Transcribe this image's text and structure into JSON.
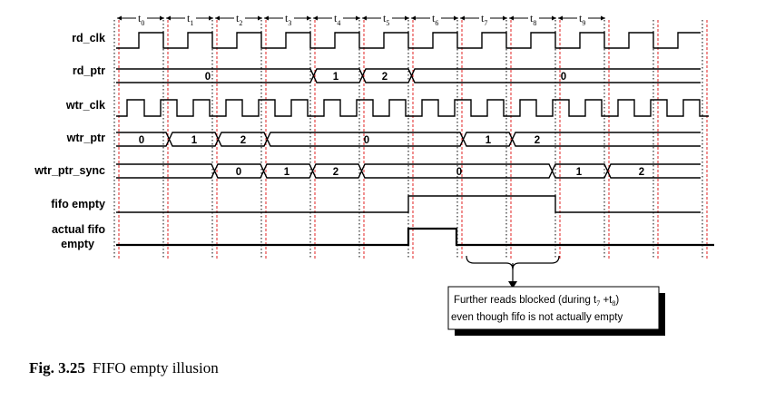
{
  "signals": {
    "rd_clk": "rd_clk",
    "rd_ptr": "rd_ptr",
    "wtr_clk": "wtr_clk",
    "wtr_ptr": "wtr_ptr",
    "wtr_ptr_sync": "wtr_ptr_sync",
    "fifo_empty": "fifo empty",
    "actual_fifo_empty_line1": "actual fifo",
    "actual_fifo_empty_line2": "empty"
  },
  "time_marks": [
    {
      "t": "t",
      "sub": "0"
    },
    {
      "t": "t",
      "sub": "1"
    },
    {
      "t": "t",
      "sub": "2"
    },
    {
      "t": "t",
      "sub": "3"
    },
    {
      "t": "t",
      "sub": "4"
    },
    {
      "t": "t",
      "sub": "5"
    },
    {
      "t": "t",
      "sub": "6"
    },
    {
      "t": "t",
      "sub": "7"
    },
    {
      "t": "t",
      "sub": "8"
    },
    {
      "t": "t",
      "sub": "9"
    }
  ],
  "bus_values": {
    "rd_ptr": [
      "0",
      "1",
      "2",
      "0"
    ],
    "wtr_ptr": [
      "0",
      "1",
      "2",
      "0",
      "1",
      "2"
    ],
    "wtr_ptr_sync": [
      "0",
      "1",
      "2",
      "0",
      "1",
      "2"
    ]
  },
  "annotation": {
    "line1_pre": "Further reads blocked (during t",
    "line1_sub1": "7",
    "line1_mid": " +t",
    "line1_sub2": "8",
    "line1_post": ")",
    "line2": "even though fifo is not actually empty"
  },
  "caption": {
    "number": "Fig. 3.25",
    "text": "FIFO empty illusion"
  },
  "colors": {
    "grid_dotted": "#000000",
    "grid_red": "#e02020",
    "wave": "#000000"
  }
}
